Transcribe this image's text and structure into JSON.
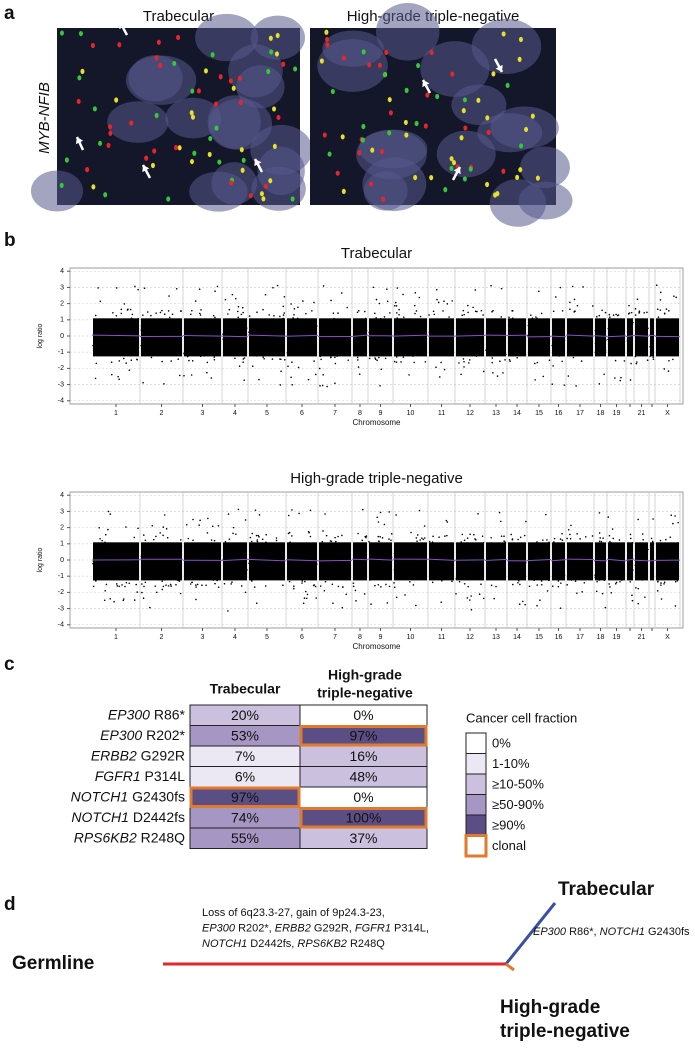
{
  "panel_labels": [
    "a",
    "b",
    "c",
    "d"
  ],
  "panel_a": {
    "titles": [
      "Trabecular",
      "High-grade triple-negative"
    ],
    "ylabel": "MYB-NFIB"
  },
  "chart_data": [
    {
      "type": "scatter",
      "title": "Trabecular",
      "ylabel": "log ratio",
      "xlabel": "Chromosome",
      "categories": [
        "1",
        "2",
        "3",
        "4",
        "5",
        "6",
        "7",
        "8",
        "9",
        "10",
        "11",
        "12",
        "13",
        "14",
        "15",
        "16",
        "17",
        "18",
        "19",
        null,
        "21",
        null,
        "X"
      ],
      "ylim": [
        -4.2,
        4.2
      ],
      "yticks": [
        -4,
        -3,
        -2,
        -1,
        0,
        1,
        2,
        3,
        4
      ],
      "grid": true,
      "color": "#000000",
      "segment_color": "#8a4fc8"
    },
    {
      "type": "scatter",
      "title": "High-grade triple-negative",
      "ylabel": "log ratio",
      "xlabel": "Chromosome",
      "categories": [
        "1",
        "2",
        "3",
        "4",
        "5",
        "6",
        "7",
        "8",
        "9",
        "10",
        "11",
        "12",
        "13",
        "14",
        "15",
        "16",
        "17",
        "18",
        "19",
        null,
        "21",
        null,
        "X"
      ],
      "ylim": [
        -4.2,
        4.2
      ],
      "yticks": [
        -4,
        -3,
        -2,
        -1,
        0,
        1,
        2,
        3,
        4
      ],
      "grid": true,
      "color": "#000000",
      "segment_color": "#8a4fc8"
    }
  ],
  "table": {
    "columns": [
      [
        "Trabecular"
      ],
      [
        "High-grade",
        "triple-negative"
      ]
    ],
    "clonal_color": "#e07a2f",
    "rows": [
      {
        "gene": "EP300",
        "mutation": "R86*",
        "cells": [
          {
            "text": "20%",
            "color": "#cbc0dd",
            "clonal": false
          },
          {
            "text": "0%",
            "color": "#ffffff",
            "clonal": false
          }
        ]
      },
      {
        "gene": "EP300",
        "mutation": "R202*",
        "cells": [
          {
            "text": "53%",
            "color": "#a596c4",
            "clonal": false
          },
          {
            "text": "97%",
            "color": "#5b4e84",
            "clonal": true
          }
        ]
      },
      {
        "gene": "ERBB2",
        "mutation": "G292R",
        "cells": [
          {
            "text": "7%",
            "color": "#ece8f3",
            "clonal": false
          },
          {
            "text": "16%",
            "color": "#cbc0dd",
            "clonal": false
          }
        ]
      },
      {
        "gene": "FGFR1",
        "mutation": "P314L",
        "cells": [
          {
            "text": "6%",
            "color": "#ece8f3",
            "clonal": false
          },
          {
            "text": "48%",
            "color": "#cbc0dd",
            "clonal": false
          }
        ]
      },
      {
        "gene": "NOTCH1",
        "mutation": "G2430fs",
        "cells": [
          {
            "text": "97%",
            "color": "#5b4e84",
            "clonal": true
          },
          {
            "text": "0%",
            "color": "#ffffff",
            "clonal": false
          }
        ]
      },
      {
        "gene": "NOTCH1",
        "mutation": "D2442fs",
        "cells": [
          {
            "text": "74%",
            "color": "#a596c4",
            "clonal": false
          },
          {
            "text": "100%",
            "color": "#5b4e84",
            "clonal": true
          }
        ]
      },
      {
        "gene": "RPS6KB2",
        "mutation": "R248Q",
        "cells": [
          {
            "text": "55%",
            "color": "#a596c4",
            "clonal": false
          },
          {
            "text": "37%",
            "color": "#cbc0dd",
            "clonal": false
          }
        ]
      }
    ],
    "legend": {
      "title": "Cancer cell fraction",
      "items": [
        {
          "label": "0%",
          "color": "#ffffff"
        },
        {
          "label": "1-10%",
          "color": "#ece8f3"
        },
        {
          "label": "≥10-50%",
          "color": "#cbc0dd"
        },
        {
          "label": "≥50-90%",
          "color": "#a596c4"
        },
        {
          "label": "≥90%",
          "color": "#5b4e84"
        },
        {
          "label": "clonal",
          "color": "#ffffff",
          "border": "#e07a2f"
        }
      ]
    }
  },
  "tree": {
    "root": "Germline",
    "leaf_1": [
      "Trabecular"
    ],
    "leaf_2": [
      "High-grade",
      "triple-negative"
    ],
    "trunk_color": "#e3262a",
    "branch_1_color": "#3a4fa3",
    "branch_2_color": "#e07a2f",
    "trunk_annotation": [
      [
        {
          "text": "Loss of 6q23.3-27, gain of 9p24.3-23,",
          "italic": false
        }
      ],
      [
        {
          "text": "EP300",
          "italic": true
        },
        {
          "text": " R202*, ",
          "italic": false
        },
        {
          "text": "ERBB2",
          "italic": true
        },
        {
          "text": " G292R, ",
          "italic": false
        },
        {
          "text": "FGFR1",
          "italic": true
        },
        {
          "text": " P314L,",
          "italic": false
        }
      ],
      [
        {
          "text": "NOTCH1",
          "italic": true
        },
        {
          "text": " D2442fs, ",
          "italic": false
        },
        {
          "text": "RPS6KB2",
          "italic": true
        },
        {
          "text": " R248Q",
          "italic": false
        }
      ]
    ],
    "branch_1_annotation": [
      [
        {
          "text": "EP300",
          "italic": true
        },
        {
          "text": " R86*, ",
          "italic": false
        },
        {
          "text": "NOTCH1",
          "italic": true
        },
        {
          "text": " G2430fs",
          "italic": false
        }
      ]
    ]
  }
}
